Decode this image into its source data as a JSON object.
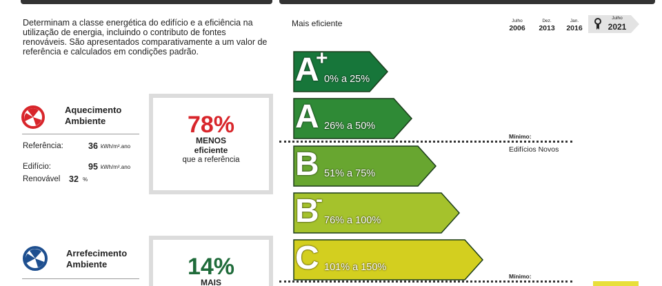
{
  "intro": "Determinam a classe energética do edifício e a eficiência na utilização de energia, incluindo o contributo de fontes renováveis. São apresentados comparativamente a um valor de referência e calculados em condições padrão.",
  "heating": {
    "title": [
      "Aquecimento",
      "Ambiente"
    ],
    "rows": [
      {
        "label": "Referência:",
        "value": "36",
        "unit": "kWh/m².ano"
      },
      {
        "label": "Edifício:",
        "value": "95",
        "unit": "kWh/m².ano"
      },
      {
        "label": "Renovável",
        "value": "32",
        "unit": "%"
      }
    ],
    "percent": "78%",
    "comparison": "MENOS",
    "line1": "eficiente",
    "line2": "que a referência"
  },
  "cooling": {
    "title": [
      "Arrefecimento",
      "Ambiente"
    ],
    "percent": "14%",
    "comparison": "MAIS"
  },
  "scale": {
    "label": "Mais eficiente",
    "dates": [
      {
        "month": "Julho",
        "year": "2006"
      },
      {
        "month": "Dez.",
        "year": "2013"
      },
      {
        "month": "Jan.",
        "year": "2016"
      },
      {
        "month": "Julho",
        "year": "2021"
      }
    ],
    "classes": [
      {
        "letter": "A",
        "modifier": "+",
        "range": "0% a 25%",
        "color": "#17763a"
      },
      {
        "letter": "A",
        "modifier": "",
        "range": "26% a 50%",
        "color": "#2f8a36"
      },
      {
        "letter": "B",
        "modifier": "",
        "range": "51% a 75%",
        "color": "#68a630"
      },
      {
        "letter": "B",
        "modifier": "-",
        "range": "76% a 100%",
        "color": "#a5c22c"
      },
      {
        "letter": "C",
        "modifier": "",
        "range": "101% a 150%",
        "color": "#d3cf1f"
      }
    ],
    "minimum_new": {
      "label": "Mínimo:",
      "detail": "Edifícios Novos"
    },
    "minimum_second": "Mínimo:"
  }
}
